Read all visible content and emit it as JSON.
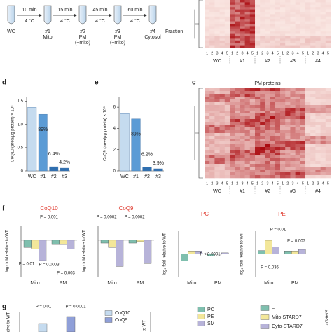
{
  "scheme": {
    "steps": [
      {
        "time": "10 min",
        "temp": "4 °C"
      },
      {
        "time": "15 min",
        "temp": "4 °C"
      },
      {
        "time": "45 min",
        "temp": "4 °C"
      },
      {
        "time": "60 min",
        "temp": "4 °C"
      }
    ],
    "fractions": [
      {
        "id": "WC"
      },
      {
        "id": "#1",
        "label": "Mito"
      },
      {
        "id": "#2",
        "label": "PM",
        "sub": "(+mito)"
      },
      {
        "id": "#3",
        "label": "PM",
        "sub": "(+mito)"
      },
      {
        "id": "#4",
        "label": "Cytosol"
      }
    ],
    "fraction_label": "Fraction"
  },
  "panel_labels": [
    "c",
    "d",
    "e",
    "f",
    "g"
  ],
  "heatmaps": {
    "lanes": [
      1,
      2,
      3,
      4,
      5
    ],
    "groups": [
      "WC",
      "#1",
      "#2",
      "#3",
      "#4"
    ],
    "title": "PM proteins"
  },
  "chart_data": [
    {
      "type": "bar",
      "ylabel": "CoQ10 (area/µg protein) × 10⁵",
      "categories": [
        "WC",
        "#1",
        "#2",
        "#3"
      ],
      "values": [
        1.37,
        1.22,
        0.09,
        0.06
      ],
      "colors": [
        "#c5dbef",
        "#5b9bd5",
        "#2f6fb0",
        "#2f6fb0"
      ],
      "annotations": [
        "89%",
        "6.4%",
        "4.2%"
      ],
      "ylim": [
        0,
        1.6
      ],
      "yticks": [
        0,
        0.5,
        {
          "value": 1,
          "label": "1.0"
        },
        1.5
      ]
    },
    {
      "type": "bar",
      "ylabel": "CoQ9 (area/µg protein) × 10⁵",
      "categories": [
        "WC",
        "#1",
        "#2",
        "#3"
      ],
      "values": [
        5.4,
        4.9,
        0.35,
        0.2
      ],
      "colors": [
        "#c5dbef",
        "#5b9bd5",
        "#2f6fb0",
        "#2f6fb0"
      ],
      "annotations": [
        "89%",
        "6.2%",
        "3.9%"
      ],
      "ylim": [
        0,
        7
      ],
      "yticks": [
        0,
        2,
        4,
        6
      ]
    },
    {
      "type": "grouped_bar",
      "title": "CoQ10",
      "title_color": "#e03c31",
      "ylabel": "log₂ fold relative to WT",
      "categories": [
        "Mito",
        "PM"
      ],
      "ylim": [
        -2.5,
        1
      ],
      "series": [
        {
          "name": "–",
          "color": "#7fbfae",
          "values": [
            -0.5,
            -0.3
          ]
        },
        {
          "name": "Mito-STARD7",
          "color": "#f3e79a",
          "values": [
            -0.6,
            -0.3
          ]
        },
        {
          "name": "Cyto-STARD7",
          "color": "#b7b3d9",
          "values": [
            -1.4,
            -0.6
          ]
        }
      ],
      "annotations": [
        "P = 0.001",
        "P = 0.01",
        "P = 0.0003",
        "P = 0.003"
      ]
    },
    {
      "type": "grouped_bar",
      "title": "CoQ9",
      "title_color": "#e03c31",
      "ylabel": "log₂ fold relative to WT",
      "categories": [
        "Mito",
        "PM"
      ],
      "ylim": [
        -2.5,
        1
      ],
      "series": [
        {
          "color": "#7fbfae",
          "values": [
            -0.2,
            -0.2
          ]
        },
        {
          "color": "#f3e79a",
          "values": [
            -0.5,
            -0.1
          ]
        },
        {
          "color": "#b7b3d9",
          "values": [
            -1.8,
            -1.6
          ]
        }
      ],
      "annotations": [
        "P = 0.0002",
        "P = 0.0002"
      ]
    },
    {
      "type": "grouped_bar",
      "title": "PC",
      "title_color": "#e03c31",
      "ylabel": "log₂ fold relative to WT",
      "categories": [
        "Mito",
        "PM"
      ],
      "ylim": [
        -1,
        1
      ],
      "series": [
        {
          "color": "#7fbfae",
          "values": [
            -0.3,
            -0.1
          ]
        },
        {
          "color": "#f3e79a",
          "values": [
            0.1,
            0
          ]
        },
        {
          "color": "#b7b3d9",
          "values": [
            0.1,
            0.05
          ]
        }
      ],
      "annotations": [
        "P < 0.0001"
      ]
    },
    {
      "type": "grouped_bar",
      "title": "PE",
      "title_color": "#e03c31",
      "ylabel": "log₂ fold relative to WT",
      "categories": [
        "Mito",
        "PM"
      ],
      "ylim": [
        -1,
        1
      ],
      "series": [
        {
          "color": "#7fbfae",
          "values": [
            0.15,
            0.1
          ]
        },
        {
          "color": "#f3e79a",
          "values": [
            0.6,
            0.1
          ]
        },
        {
          "color": "#b7b3d9",
          "values": [
            0.3,
            0.2
          ]
        }
      ],
      "annotations": [
        "P = 0.01",
        "P = 0.007",
        "P = 0.036"
      ]
    }
  ],
  "panel_g": {
    "annotations": [
      "P = 0.01",
      "P = 0.0001"
    ],
    "ylabel": "fold relative to WT",
    "ylabel2": "to WT",
    "legend_a": [
      {
        "name": "CoQ10",
        "color": "#c5dbef"
      },
      {
        "name": "CoQ9",
        "color": "#8f9fd8"
      }
    ],
    "legend_b": [
      {
        "name": "PC",
        "color": "#7fbfae"
      },
      {
        "name": "PE",
        "color": "#f3e79a"
      },
      {
        "name": "SM",
        "color": "#b7b3d9"
      }
    ],
    "gene": "STARD7"
  }
}
